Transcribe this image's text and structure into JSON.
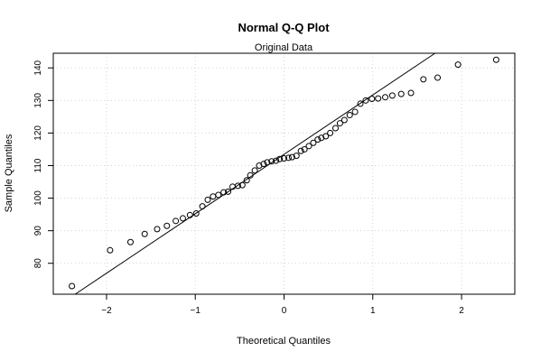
{
  "chart_data": {
    "type": "scatter",
    "title": "Normal Q-Q Plot",
    "subtitle": "Original Data",
    "xlabel": "Theoretical Quantiles",
    "ylabel": "Sample Quantiles",
    "xlim": [
      -2.6,
      2.6
    ],
    "ylim": [
      70.5,
      144.5
    ],
    "x_ticks": [
      -2,
      -1,
      0,
      1,
      2
    ],
    "x_tick_labels": [
      "−2",
      "−1",
      "0",
      "1",
      "2"
    ],
    "y_ticks": [
      80,
      90,
      100,
      110,
      120,
      130,
      140
    ],
    "y_tick_labels": [
      "80",
      "90",
      "100",
      "110",
      "120",
      "130",
      "140"
    ],
    "grid": true,
    "reference_line": {
      "intercept": 113.45,
      "slope": 18.25
    },
    "points": {
      "x": [
        -2.39,
        -1.96,
        -1.73,
        -1.57,
        -1.43,
        -1.32,
        -1.22,
        -1.14,
        -1.06,
        -0.99,
        -0.92,
        -0.86,
        -0.8,
        -0.74,
        -0.68,
        -0.63,
        -0.58,
        -0.52,
        -0.47,
        -0.42,
        -0.38,
        -0.33,
        -0.28,
        -0.23,
        -0.19,
        -0.14,
        -0.09,
        -0.05,
        0.0,
        0.05,
        0.09,
        0.14,
        0.19,
        0.23,
        0.28,
        0.33,
        0.38,
        0.42,
        0.47,
        0.52,
        0.58,
        0.63,
        0.68,
        0.74,
        0.8,
        0.86,
        0.92,
        0.99,
        1.06,
        1.14,
        1.22,
        1.32,
        1.43,
        1.57,
        1.73,
        1.96,
        2.39
      ],
      "y": [
        73.0,
        84.0,
        86.5,
        89.0,
        90.5,
        91.5,
        93.0,
        93.8,
        94.8,
        95.3,
        97.5,
        99.5,
        100.5,
        101.0,
        101.8,
        102.0,
        103.5,
        103.8,
        104.0,
        105.5,
        107.0,
        108.5,
        110.0,
        110.5,
        111.0,
        111.3,
        111.5,
        112.0,
        112.2,
        112.4,
        112.6,
        113.0,
        114.5,
        115.0,
        116.0,
        117.0,
        118.0,
        118.5,
        119.0,
        120.0,
        121.5,
        123.0,
        124.0,
        125.5,
        126.5,
        129.0,
        130.0,
        130.5,
        130.6,
        131.0,
        131.5,
        132.0,
        132.3,
        136.5,
        137.0,
        141.0,
        142.5
      ]
    }
  }
}
